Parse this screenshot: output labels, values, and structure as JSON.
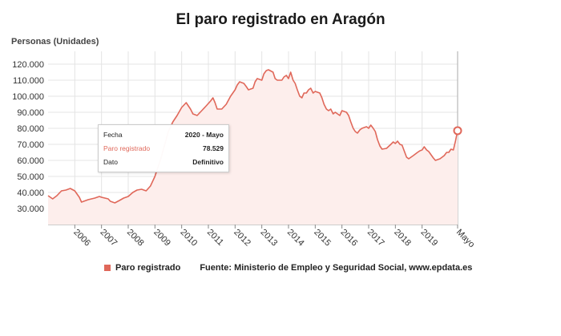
{
  "chart_data": {
    "type": "area",
    "title": "El paro registrado en Aragón",
    "ylabel": "Personas (Unidades)",
    "xlabel": "",
    "ylim": [
      20000,
      128000
    ],
    "yticks": [
      30000,
      40000,
      50000,
      60000,
      70000,
      80000,
      90000,
      100000,
      110000,
      120000
    ],
    "ytick_labels": [
      "30.000",
      "40.000",
      "50.000",
      "60.000",
      "70.000",
      "80.000",
      "90.000",
      "100.000",
      "110.000",
      "120.000"
    ],
    "xlim": [
      2005,
      2020.33
    ],
    "xticks": [
      2006,
      2007,
      2008,
      2009,
      2010,
      2011,
      2012,
      2013,
      2014,
      2015,
      2016,
      2017,
      2018,
      2019,
      2020.33
    ],
    "xtick_labels": [
      "2006",
      "2007",
      "2008",
      "2009",
      "2010",
      "2011",
      "2012",
      "2013",
      "2014",
      "2015",
      "2016",
      "2017",
      "2018",
      "2019",
      "Mayo"
    ],
    "grid": true,
    "legend_position": "bottom-left",
    "series": [
      {
        "name": "Paro registrado",
        "color": "#e0685a",
        "fill": "#fdeeec",
        "points": [
          [
            2005.0,
            38000
          ],
          [
            2005.17,
            36000
          ],
          [
            2005.33,
            38000
          ],
          [
            2005.5,
            41000
          ],
          [
            2005.67,
            41500
          ],
          [
            2005.83,
            42500
          ],
          [
            2006.0,
            41000
          ],
          [
            2006.17,
            37000
          ],
          [
            2006.25,
            34000
          ],
          [
            2006.5,
            35500
          ],
          [
            2006.75,
            36500
          ],
          [
            2006.92,
            37500
          ],
          [
            2007.0,
            37000
          ],
          [
            2007.25,
            36000
          ],
          [
            2007.33,
            34500
          ],
          [
            2007.5,
            33500
          ],
          [
            2007.67,
            35000
          ],
          [
            2007.83,
            36500
          ],
          [
            2008.0,
            37500
          ],
          [
            2008.17,
            40000
          ],
          [
            2008.33,
            41500
          ],
          [
            2008.5,
            42000
          ],
          [
            2008.67,
            41000
          ],
          [
            2008.83,
            44000
          ],
          [
            2009.0,
            50000
          ],
          [
            2009.2,
            60000
          ],
          [
            2009.4,
            72000
          ],
          [
            2009.5,
            78000
          ],
          [
            2009.67,
            84000
          ],
          [
            2009.83,
            88000
          ],
          [
            2010.0,
            93000
          ],
          [
            2010.17,
            96000
          ],
          [
            2010.33,
            92000
          ],
          [
            2010.42,
            89000
          ],
          [
            2010.58,
            88000
          ],
          [
            2010.75,
            91000
          ],
          [
            2010.92,
            94000
          ],
          [
            2011.08,
            97000
          ],
          [
            2011.17,
            99000
          ],
          [
            2011.25,
            96000
          ],
          [
            2011.33,
            92000
          ],
          [
            2011.5,
            92000
          ],
          [
            2011.67,
            95000
          ],
          [
            2011.83,
            100000
          ],
          [
            2012.0,
            104000
          ],
          [
            2012.08,
            107000
          ],
          [
            2012.17,
            109000
          ],
          [
            2012.33,
            108000
          ],
          [
            2012.42,
            106000
          ],
          [
            2012.5,
            104000
          ],
          [
            2012.67,
            105000
          ],
          [
            2012.75,
            109000
          ],
          [
            2012.83,
            111000
          ],
          [
            2013.0,
            110000
          ],
          [
            2013.08,
            114000
          ],
          [
            2013.17,
            116000
          ],
          [
            2013.25,
            116500
          ],
          [
            2013.42,
            115000
          ],
          [
            2013.5,
            111000
          ],
          [
            2013.58,
            110000
          ],
          [
            2013.75,
            110000
          ],
          [
            2013.83,
            112000
          ],
          [
            2013.92,
            113000
          ],
          [
            2014.0,
            111000
          ],
          [
            2014.08,
            115000
          ],
          [
            2014.17,
            110000
          ],
          [
            2014.25,
            108000
          ],
          [
            2014.33,
            104000
          ],
          [
            2014.42,
            100000
          ],
          [
            2014.5,
            99000
          ],
          [
            2014.58,
            102000
          ],
          [
            2014.67,
            102000
          ],
          [
            2014.75,
            104000
          ],
          [
            2014.83,
            105000
          ],
          [
            2014.92,
            102000
          ],
          [
            2015.0,
            103000
          ],
          [
            2015.17,
            102000
          ],
          [
            2015.25,
            99000
          ],
          [
            2015.33,
            95000
          ],
          [
            2015.42,
            92000
          ],
          [
            2015.5,
            91000
          ],
          [
            2015.58,
            92000
          ],
          [
            2015.67,
            89000
          ],
          [
            2015.75,
            90000
          ],
          [
            2015.92,
            88000
          ],
          [
            2016.0,
            91000
          ],
          [
            2016.17,
            90000
          ],
          [
            2016.25,
            88000
          ],
          [
            2016.33,
            84000
          ],
          [
            2016.42,
            80000
          ],
          [
            2016.5,
            78000
          ],
          [
            2016.58,
            77000
          ],
          [
            2016.67,
            79000
          ],
          [
            2016.75,
            80000
          ],
          [
            2016.92,
            81000
          ],
          [
            2017.0,
            80000
          ],
          [
            2017.08,
            82000
          ],
          [
            2017.17,
            80000
          ],
          [
            2017.25,
            78000
          ],
          [
            2017.33,
            73000
          ],
          [
            2017.42,
            69000
          ],
          [
            2017.5,
            67000
          ],
          [
            2017.67,
            67500
          ],
          [
            2017.83,
            70000
          ],
          [
            2017.92,
            71500
          ],
          [
            2018.0,
            70500
          ],
          [
            2018.08,
            72000
          ],
          [
            2018.17,
            70000
          ],
          [
            2018.25,
            69500
          ],
          [
            2018.33,
            66000
          ],
          [
            2018.42,
            62000
          ],
          [
            2018.5,
            61000
          ],
          [
            2018.67,
            63000
          ],
          [
            2018.83,
            65000
          ],
          [
            2018.92,
            66000
          ],
          [
            2019.0,
            66500
          ],
          [
            2019.08,
            68500
          ],
          [
            2019.17,
            66500
          ],
          [
            2019.25,
            65500
          ],
          [
            2019.42,
            61500
          ],
          [
            2019.5,
            60000
          ],
          [
            2019.67,
            61000
          ],
          [
            2019.83,
            63000
          ],
          [
            2019.92,
            65000
          ],
          [
            2020.0,
            65000
          ],
          [
            2020.08,
            67000
          ],
          [
            2020.17,
            66500
          ],
          [
            2020.25,
            72000
          ],
          [
            2020.33,
            78529
          ]
        ]
      }
    ],
    "highlight": {
      "x": 2020.33,
      "y": 78529
    }
  },
  "tooltip": {
    "date_label": "Fecha",
    "date_value": "2020 - Mayo",
    "series_label": "Paro registrado",
    "series_value": "78.529",
    "data_label": "Dato",
    "data_value": "Definitivo"
  },
  "legend": {
    "series_label": "Paro registrado",
    "source": "Fuente: Ministerio de Empleo y Seguridad Social, www.epdata.es"
  }
}
